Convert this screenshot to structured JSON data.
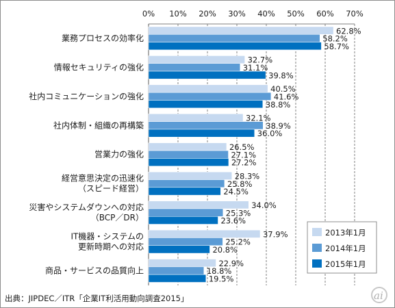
{
  "chart_data": {
    "type": "bar",
    "orientation": "horizontal",
    "categories": [
      [
        "業務プロセスの効率化"
      ],
      [
        "情報セキュリティの強化"
      ],
      [
        "社内コミュニケーションの強化"
      ],
      [
        "社内体制・組織の再構築"
      ],
      [
        "営業力の強化"
      ],
      [
        "経営意思決定の迅速化",
        "（スピード経営）"
      ],
      [
        "災害やシステムダウンへの対応",
        "（BCP／DR）"
      ],
      [
        "IT機器・システムの",
        "更新時期への対応"
      ],
      [
        "商品・サービスの品質向上"
      ]
    ],
    "series": [
      {
        "name": "2013年1月",
        "color": "#c6d9f0",
        "values": [
          62.8,
          32.7,
          40.5,
          32.1,
          26.5,
          28.3,
          34.0,
          37.9,
          22.9
        ]
      },
      {
        "name": "2014年1月",
        "color": "#5b9bd5",
        "values": [
          58.2,
          31.1,
          41.6,
          38.9,
          27.1,
          25.8,
          25.3,
          25.2,
          18.8
        ]
      },
      {
        "name": "2015年1月",
        "color": "#0070c0",
        "values": [
          58.7,
          39.8,
          38.8,
          36.0,
          27.2,
          24.5,
          23.6,
          20.8,
          19.5
        ]
      }
    ],
    "xlim": [
      0,
      70
    ],
    "xticks": [
      "0%",
      "10%",
      "20%",
      "30%",
      "40%",
      "50%",
      "60%",
      "70%"
    ],
    "xtick_values": [
      0,
      10,
      20,
      30,
      40,
      50,
      60,
      70
    ],
    "grid": "vertical dashed",
    "legend_position": "bottom-right",
    "source": "出典：JIPDEC／ITR「企業IT利活用動向調査2015」"
  },
  "logo": {
    "text": "ai"
  }
}
